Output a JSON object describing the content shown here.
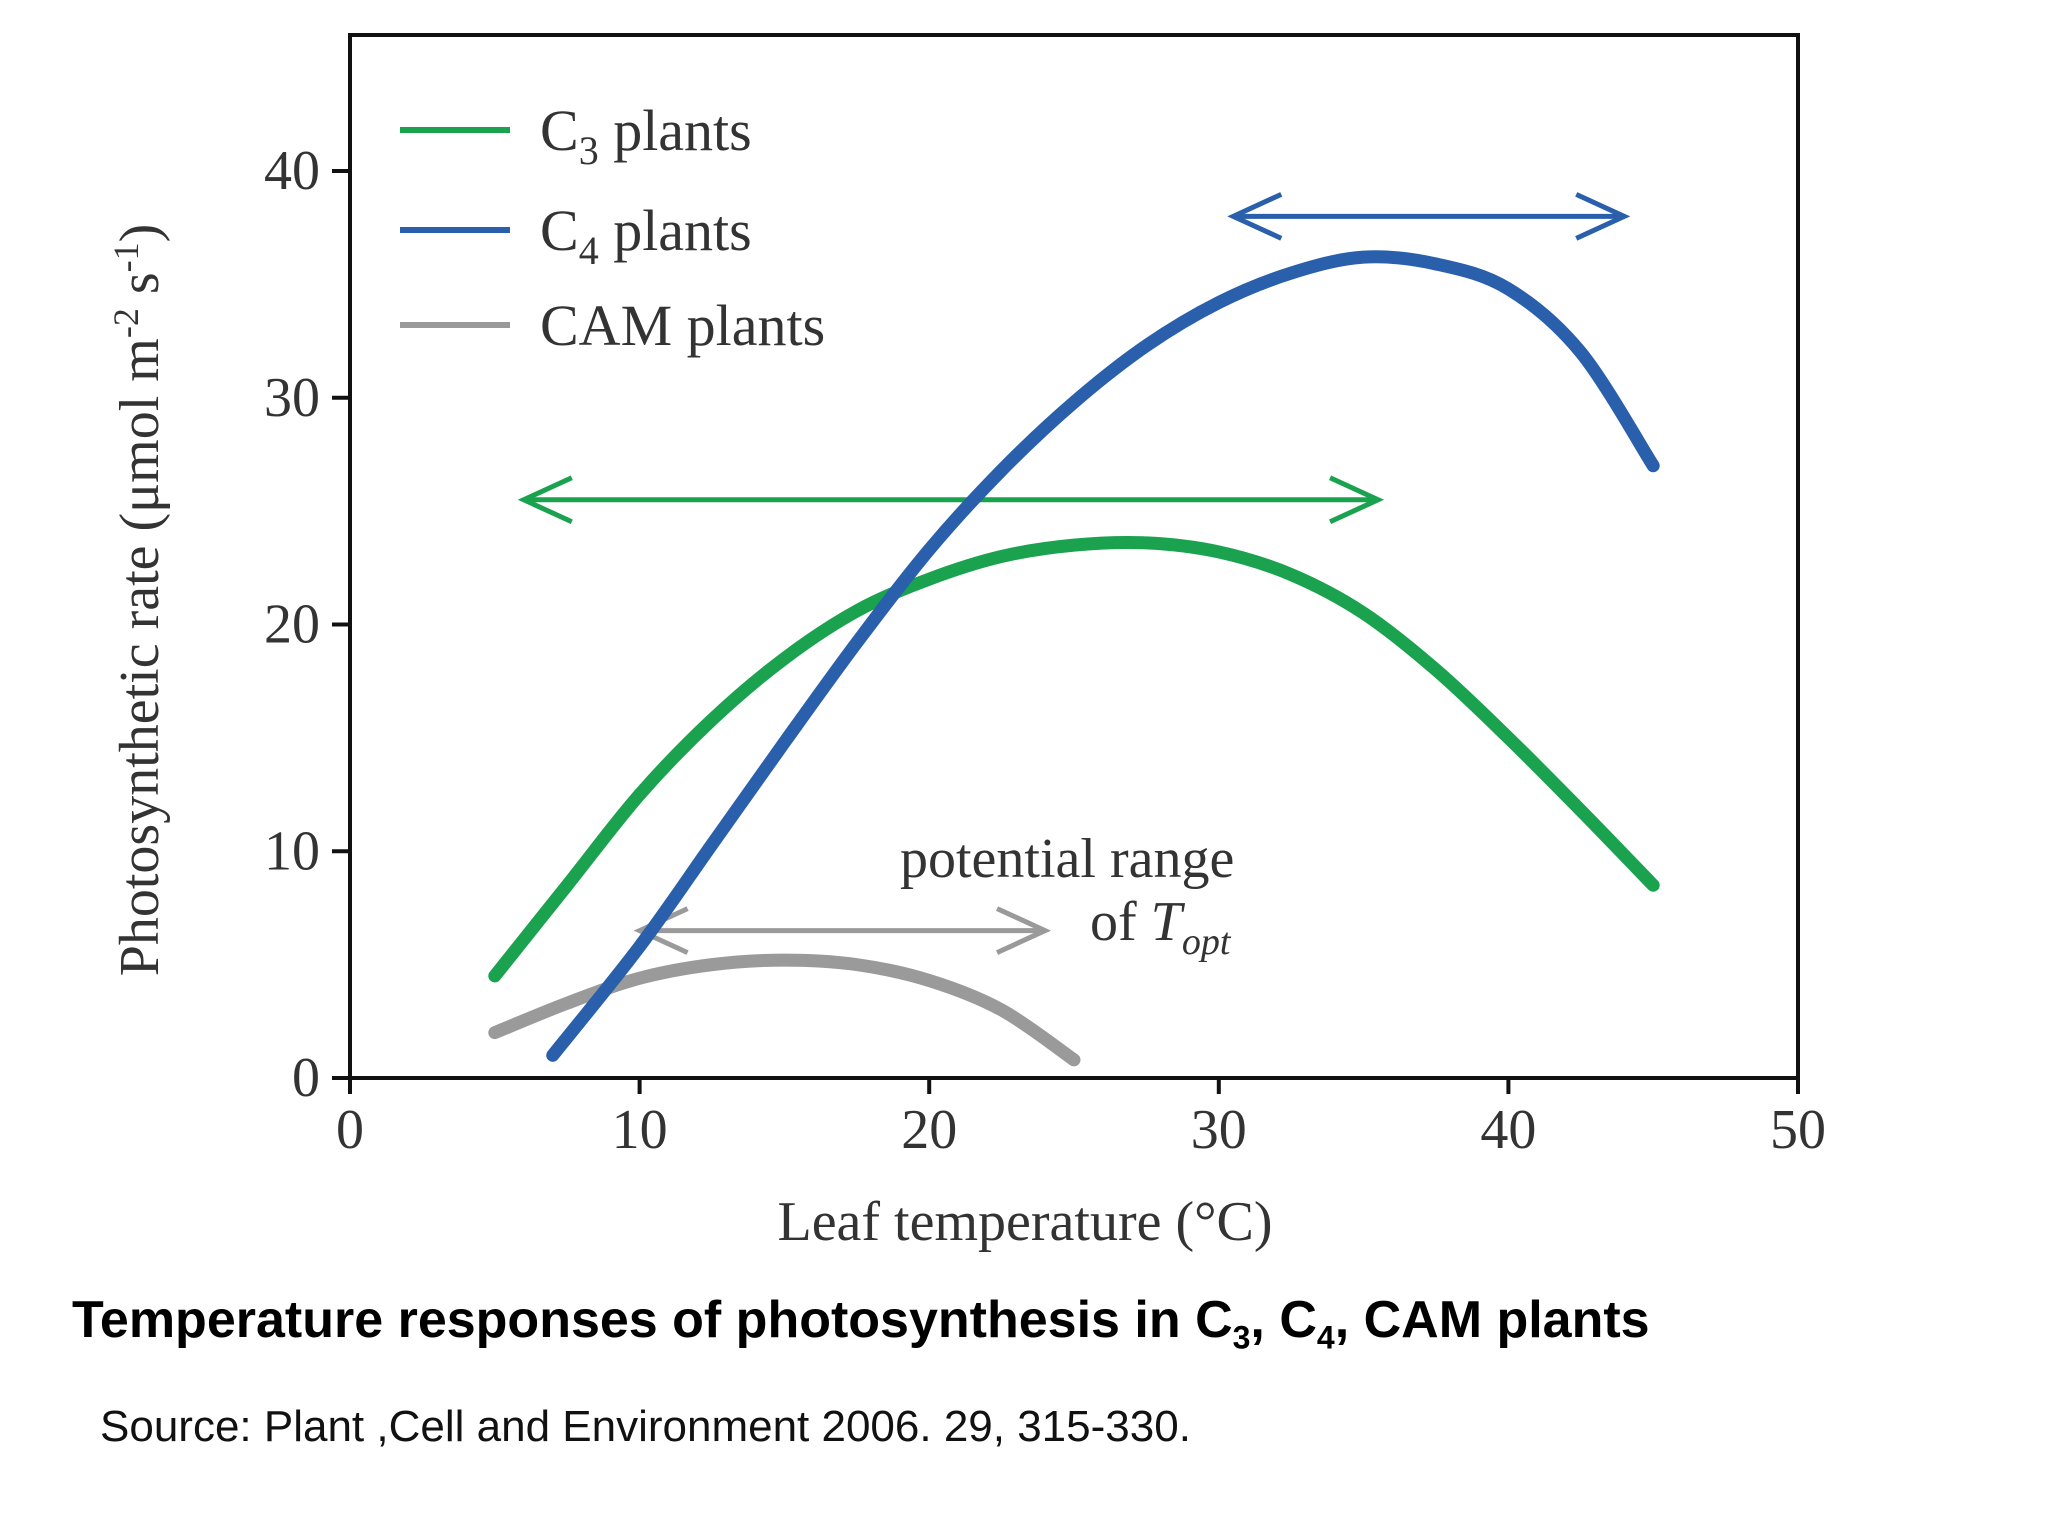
{
  "chart_data": {
    "type": "line",
    "xlabel": "Leaf temperature (°C)",
    "ylabel_main": "Photosynthetic rate (μmol m",
    "ylabel_sup1": "-2",
    "ylabel_mid": " s",
    "ylabel_sup2": "-1",
    "ylabel_end": ")",
    "xlim": [
      0,
      50
    ],
    "ylim": [
      0,
      46
    ],
    "x_ticks": [
      0,
      10,
      20,
      30,
      40,
      50
    ],
    "y_ticks": [
      0,
      10,
      20,
      30,
      40
    ],
    "legend_position": "top-left",
    "series": [
      {
        "label_main": "C",
        "label_sub": "3",
        "label_rest": " plants",
        "color": "#1aa24f",
        "points": [
          [
            5,
            4.5
          ],
          [
            7.5,
            8.5
          ],
          [
            10,
            12.5
          ],
          [
            12.5,
            15.8
          ],
          [
            15,
            18.5
          ],
          [
            17.5,
            20.6
          ],
          [
            20,
            22.0
          ],
          [
            22.5,
            23.0
          ],
          [
            25,
            23.5
          ],
          [
            27.5,
            23.6
          ],
          [
            30,
            23.2
          ],
          [
            32.5,
            22.2
          ],
          [
            35,
            20.5
          ],
          [
            37.5,
            18.0
          ],
          [
            40,
            15.0
          ],
          [
            42.5,
            11.8
          ],
          [
            45,
            8.5
          ]
        ]
      },
      {
        "label_main": "C",
        "label_sub": "4",
        "label_rest": " plants",
        "color": "#2a5fab",
        "points": [
          [
            7,
            1.0
          ],
          [
            10,
            5.8
          ],
          [
            12.5,
            10.3
          ],
          [
            15,
            14.8
          ],
          [
            17.5,
            19.2
          ],
          [
            20,
            23.3
          ],
          [
            22.5,
            26.8
          ],
          [
            25,
            29.8
          ],
          [
            27.5,
            32.3
          ],
          [
            30,
            34.2
          ],
          [
            32.5,
            35.5
          ],
          [
            35,
            36.2
          ],
          [
            37.5,
            35.9
          ],
          [
            40,
            34.8
          ],
          [
            42.5,
            32.0
          ],
          [
            45,
            27.0
          ]
        ]
      },
      {
        "label_main": "CAM plants",
        "label_sub": "",
        "label_rest": "",
        "color": "#9a9a9a",
        "points": [
          [
            5,
            2.0
          ],
          [
            7.5,
            3.3
          ],
          [
            10,
            4.4
          ],
          [
            12.5,
            5.0
          ],
          [
            15,
            5.2
          ],
          [
            17.5,
            5.0
          ],
          [
            20,
            4.3
          ],
          [
            22.5,
            3.0
          ],
          [
            25,
            0.8
          ]
        ]
      }
    ],
    "ranges": [
      {
        "name": "C3 range",
        "color": "#1aa24f",
        "from": 6,
        "to": 35.5,
        "y": 25.5
      },
      {
        "name": "C4 range",
        "color": "#2a5fab",
        "from": 30.5,
        "to": 44,
        "y": 38.0
      },
      {
        "name": "CAM range",
        "color": "#9a9a9a",
        "from": 10,
        "to": 24,
        "y": 6.5
      }
    ],
    "annotation": {
      "line1": "potential range",
      "line2_prefix": "of ",
      "line2_T": "T",
      "line2_sub": "opt"
    }
  },
  "caption": {
    "title_start": "Temperature responses of photosynthesis in ",
    "c3_C": "C",
    "c3_sub": "3",
    "sep1": ", ",
    "c4_C": "C",
    "c4_sub": "4",
    "title_end": ", CAM plants",
    "source": "Source: Plant ,Cell and  Environment 2006. 29, 315-330."
  }
}
